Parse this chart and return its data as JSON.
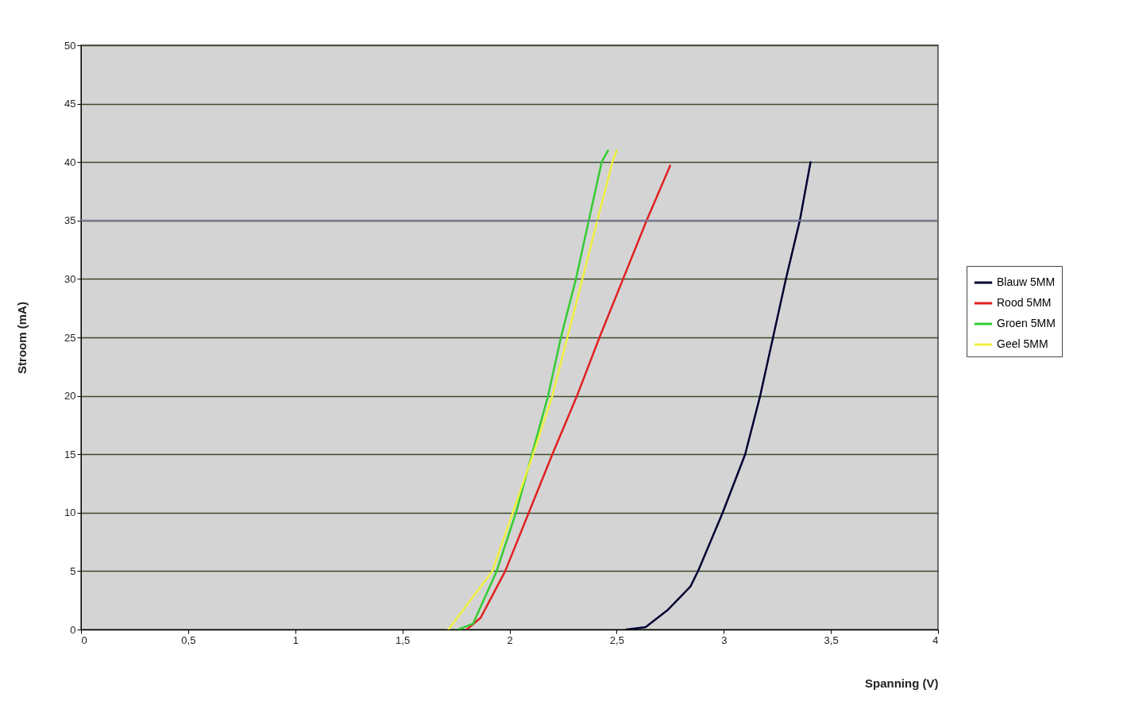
{
  "chart_data": {
    "type": "line",
    "xlabel": "Spanning (V)",
    "ylabel": "Stroom (mA)",
    "xlim": [
      0,
      4
    ],
    "ylim": [
      0,
      50
    ],
    "xticks": [
      0,
      {
        "value": 0.5,
        "label": "0,5"
      },
      1,
      {
        "value": 1.5,
        "label": "1,5"
      },
      2,
      {
        "value": 2.5,
        "label": "2,5"
      },
      3,
      {
        "value": 3.5,
        "label": "3,5"
      },
      4
    ],
    "yticks": [
      0,
      5,
      10,
      15,
      20,
      25,
      30,
      35,
      40,
      45,
      50
    ],
    "grid": "y",
    "legend": "right",
    "marker": "none",
    "line_style": "solid",
    "ref_lines": [
      {
        "axis": "y",
        "value": 35,
        "color": "#7f80a0"
      }
    ],
    "series": [
      {
        "name": "Blauw 5MM",
        "color": "#000033",
        "x": [
          2.545,
          2.635,
          2.74,
          2.845,
          2.88,
          2.995,
          3.1,
          3.17,
          3.23,
          3.29,
          3.355,
          3.405
        ],
        "values": [
          0,
          0.2,
          1.7,
          3.7,
          5,
          10,
          15,
          20,
          25,
          30,
          35,
          40
        ]
      },
      {
        "name": "Rood 5MM",
        "color": "#e02020",
        "x": [
          1.8,
          1.865,
          1.98,
          2.09,
          2.2,
          2.315,
          2.42,
          2.53,
          2.64,
          2.75
        ],
        "values": [
          0,
          1,
          5,
          10,
          15,
          20,
          25,
          30,
          35,
          39.7
        ]
      },
      {
        "name": "Groen 5MM",
        "color": "#33cc33",
        "x": [
          1.76,
          1.83,
          1.94,
          2.03,
          2.105,
          2.18,
          2.24,
          2.31,
          2.37,
          2.43,
          2.46
        ],
        "values": [
          0,
          0.5,
          5,
          10,
          15,
          20,
          25,
          30,
          35,
          40,
          41
        ]
      },
      {
        "name": "Geel 5MM",
        "color": "#f0f040",
        "x": [
          1.715,
          1.92,
          2.015,
          2.11,
          2.2,
          2.27,
          2.34,
          2.41,
          2.48,
          2.5
        ],
        "values": [
          0,
          5,
          10,
          15,
          20,
          25,
          30,
          35,
          40,
          41
        ]
      }
    ]
  }
}
